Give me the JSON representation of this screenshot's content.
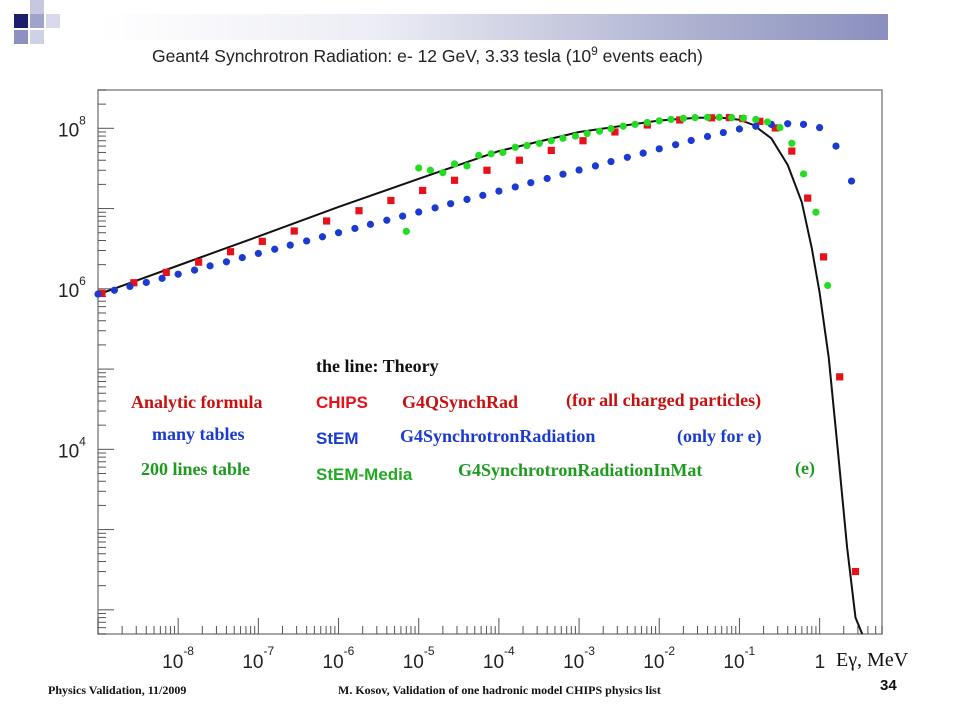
{
  "slide": {
    "footer_left": "Physics Validation, 11/2009",
    "footer_center": "M. Kosov,  Validation of one hadronic model CHIPS physics list",
    "page_number": "34"
  },
  "chart_data": {
    "type": "scatter",
    "title": "Geant4 Synchrotron Radiation: e- 12 GeV, 3.33 tesla (10",
    "title_exp": "9",
    "title_tail": " events each)",
    "xlabel": "Eγ, MeV",
    "x_scale": "log",
    "y_scale": "log",
    "xlim": [
      1e-09,
      6
    ],
    "ylim": [
      50,
      300000000.0
    ],
    "x_tick_exponents": [
      "-8",
      "-7",
      "-6",
      "-5",
      "-4",
      "-3",
      "-2",
      "-1"
    ],
    "x_tick_one": "1",
    "y_tick_exponents": [
      "8",
      "6",
      "4"
    ],
    "tick_base": "10",
    "grid": false,
    "legend_header": "the line: Theory",
    "legend_rows": [
      {
        "left": "Analytic formula",
        "name": "CHIPS",
        "class": "G4QSynchRad",
        "note": "(for all charged particles)",
        "color": "#e8101a",
        "left_color": "#c81010"
      },
      {
        "left": "many tables",
        "name": "StEM",
        "class": "G4SynchrotronRadiation",
        "note": "(only for e)",
        "color": "#1a3ad0",
        "left_color": "#1a3ad0"
      },
      {
        "left": "200 lines table",
        "name": "StEM-Media",
        "class": "G4SynchrotronRadiationInMat",
        "note": "(e)",
        "color": "#1e9a1e",
        "left_color": "#1e9a1e"
      }
    ],
    "theory_line": {
      "x": [
        1e-09,
        1e-08,
        1e-07,
        1e-06,
        1e-05,
        0.0001,
        0.001,
        0.01,
        0.03,
        0.06,
        0.1,
        0.15,
        0.25,
        0.4,
        0.6,
        0.8,
        1.0,
        1.3,
        1.7,
        2.2,
        2.8,
        3.4
      ],
      "y": [
        850000.0,
        1950000.0,
        4500000.0,
        10500000.0,
        23500000.0,
        52000000.0,
        90000000.0,
        125000000.0,
        135000000.0,
        135000000.0,
        128000000.0,
        110000000.0,
        75000000.0,
        35000000.0,
        12000000.0,
        3200000.0,
        900000.0,
        140000.0,
        9000,
        600,
        80,
        30
      ]
    },
    "series": [
      {
        "name": "CHIPS",
        "color": "#e8101a",
        "marker": "square",
        "x": [
          1.12e-09,
          2.8e-09,
          7.1e-09,
          1.8e-08,
          4.5e-08,
          1.12e-07,
          2.8e-07,
          7.1e-07,
          1.8e-06,
          4.5e-06,
          1.12e-05,
          2.8e-05,
          7.1e-05,
          0.00018,
          0.00045,
          0.00112,
          0.0028,
          0.0071,
          0.018,
          0.045,
          0.075,
          0.11,
          0.18,
          0.28,
          0.45,
          0.71,
          1.12,
          1.78,
          2.8
        ],
        "y": [
          880000.0,
          1190000.0,
          1600000.0,
          2150000.0,
          2900000.0,
          3900000.0,
          5250000.0,
          7000000.0,
          9400000.0,
          12600000.0,
          16800000.0,
          22500000.0,
          30000000.0,
          40000000.0,
          53000000.0,
          70000000.0,
          90000000.0,
          110000000.0,
          127000000.0,
          135000000.0,
          136000000.0,
          132000000.0,
          122000000.0,
          101000000.0,
          52000000.0,
          13500000.0,
          2500000.0,
          80000.0,
          300
        ]
      },
      {
        "name": "StEM",
        "color": "#1a3ad0",
        "marker": "circle",
        "x": [
          1e-09,
          1.6e-09,
          2.5e-09,
          4e-09,
          6.3e-09,
          1e-08,
          1.6e-08,
          2.5e-08,
          4e-08,
          6.3e-08,
          1e-07,
          1.6e-07,
          2.5e-07,
          4e-07,
          6.3e-07,
          1e-06,
          1.6e-06,
          2.5e-06,
          4e-06,
          6.3e-06,
          1e-05,
          1.6e-05,
          2.5e-05,
          4e-05,
          6.3e-05,
          0.0001,
          0.00016,
          0.00025,
          0.0004,
          0.00063,
          0.001,
          0.0016,
          0.0025,
          0.004,
          0.0063,
          0.01,
          0.016,
          0.025,
          0.04,
          0.063,
          0.1,
          0.16,
          0.25,
          0.4,
          0.63,
          1.0,
          1.6,
          2.5
        ],
        "y": [
          860000.0,
          960000.0,
          1070000.0,
          1200000.0,
          1350000.0,
          1520000.0,
          1710000.0,
          1930000.0,
          2170000.0,
          2450000.0,
          2760000.0,
          3110000.0,
          3500000.0,
          3950000.0,
          4450000.0,
          5000000.0,
          5650000.0,
          6350000.0,
          7150000.0,
          8050000.0,
          9050000.0,
          10200000.0,
          11500000.0,
          13000000.0,
          14600000.0,
          16500000.0,
          18600000.0,
          21000000.0,
          23700000.0,
          26800000.0,
          30200000.0,
          34000000.0,
          38500000.0,
          43500000.0,
          49000000.0,
          55500000.0,
          62500000.0,
          70500000.0,
          79000000.0,
          88500000.0,
          98000000.0,
          106000000.0,
          112000000.0,
          114000000.0,
          112000000.0,
          102000000.0,
          60000000.0,
          22000000.0
        ]
      },
      {
        "name": "StEM-Media",
        "color": "#22dd22",
        "marker": "circle",
        "x": [
          7e-06,
          1e-05,
          1.4e-05,
          2e-05,
          2.8e-05,
          4e-05,
          5.6e-05,
          8e-05,
          0.000112,
          0.00016,
          0.000224,
          0.00032,
          0.00045,
          0.00063,
          0.0009,
          0.00126,
          0.0018,
          0.0025,
          0.00355,
          0.005,
          0.0071,
          0.01,
          0.014,
          0.02,
          0.028,
          0.04,
          0.056,
          0.08,
          0.112,
          0.16,
          0.224,
          0.32,
          0.45,
          0.63,
          0.9,
          1.26
        ],
        "y": [
          5200000.0,
          32000000.0,
          30000000.0,
          28000000.0,
          36000000.0,
          34000000.0,
          46000000.0,
          48000000.0,
          50000000.0,
          58000000.0,
          61000000.0,
          65000000.0,
          70000000.0,
          75000000.0,
          80000000.0,
          86000000.0,
          92000000.0,
          99000000.0,
          106000000.0,
          112000000.0,
          118000000.0,
          124000000.0,
          129000000.0,
          133000000.0,
          136000000.0,
          137000000.0,
          137000000.0,
          136000000.0,
          134000000.0,
          129000000.0,
          120000000.0,
          102000000.0,
          65000000.0,
          27000000.0,
          9000000.0,
          1100000.0
        ]
      }
    ]
  }
}
